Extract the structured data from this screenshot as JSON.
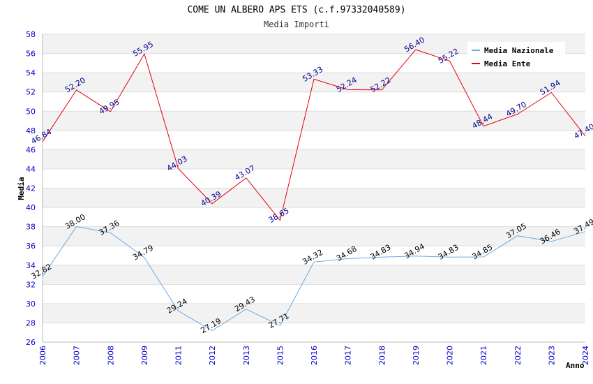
{
  "chart_data": {
    "type": "line",
    "title": "COME UN ALBERO APS ETS (c.f.97332040589)",
    "subtitle": "Media Importi",
    "xlabel": "Anno",
    "ylabel": "Media",
    "ylim": [
      26,
      58
    ],
    "yticks": [
      26,
      28,
      30,
      32,
      34,
      36,
      38,
      40,
      42,
      44,
      46,
      48,
      50,
      52,
      54,
      56,
      58
    ],
    "grid": true,
    "legend_position": "top-right",
    "categories": [
      "2006",
      "2007",
      "2008",
      "2009",
      "2011",
      "2012",
      "2013",
      "2015",
      "2016",
      "2017",
      "2018",
      "2019",
      "2020",
      "2021",
      "2022",
      "2023",
      "2024"
    ],
    "series": [
      {
        "name": "Media Nazionale",
        "color": "#6aa9e6",
        "label_color": "#000000",
        "values": [
          32.82,
          38.0,
          37.36,
          34.79,
          29.24,
          27.19,
          29.43,
          27.71,
          34.32,
          34.68,
          34.83,
          34.94,
          34.83,
          34.85,
          37.05,
          36.46,
          37.49
        ],
        "labels": [
          "32.82",
          "38.00",
          "37.36",
          "34.79",
          "29.24",
          "27.19",
          "29.43",
          "27.71",
          "34.32",
          "34.68",
          "34.83",
          "34.94",
          "34.83",
          "34.85",
          "37.05",
          "36.46",
          "37.49"
        ]
      },
      {
        "name": "Media Ente",
        "color": "#e8000b",
        "label_color": "#00008b",
        "values": [
          46.84,
          52.2,
          49.95,
          55.95,
          44.03,
          40.39,
          43.07,
          38.65,
          53.33,
          52.24,
          52.22,
          56.4,
          55.22,
          48.44,
          49.7,
          51.94,
          47.4
        ],
        "labels": [
          "46.84",
          "52.20",
          "49.95",
          "55.95",
          "44.03",
          "40.39",
          "43.07",
          "38.65",
          "53.33",
          "52.24",
          "52.22",
          "56.40",
          "55.22",
          "48.44",
          "49.70",
          "51.94",
          "47.40"
        ]
      }
    ]
  }
}
